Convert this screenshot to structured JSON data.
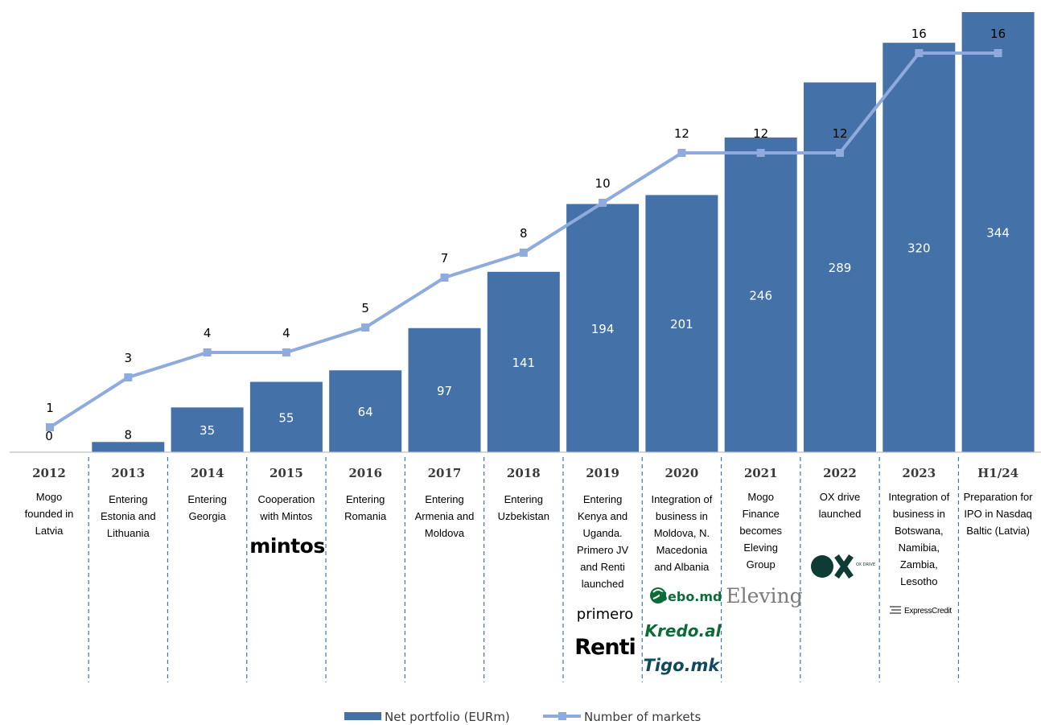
{
  "chart_data": {
    "type": "bar",
    "categories": [
      "2012",
      "2013",
      "2014",
      "2015",
      "2016",
      "2017",
      "2018",
      "2019",
      "2020",
      "2021",
      "2022",
      "2023",
      "H1/24"
    ],
    "series": [
      {
        "name": "Net portfolio (EURm)",
        "type": "bar",
        "values": [
          0,
          8,
          35,
          55,
          64,
          97,
          141,
          194,
          201,
          246,
          289,
          320,
          344
        ]
      },
      {
        "name": "Number of markets",
        "type": "line",
        "values": [
          1,
          3,
          4,
          4,
          5,
          7,
          8,
          10,
          12,
          12,
          12,
          16,
          16
        ]
      }
    ],
    "descriptions": [
      [
        "Mogo",
        "founded in",
        "Latvia"
      ],
      [
        "Entering",
        "Estonia and",
        "Lithuania"
      ],
      [
        "Entering",
        "Georgia"
      ],
      [
        "Cooperation",
        "with Mintos"
      ],
      [
        "Entering",
        "Romania"
      ],
      [
        "Entering",
        "Armenia and",
        "Moldova"
      ],
      [
        "Entering",
        "Uzbekistan"
      ],
      [
        "Entering",
        "Kenya and",
        "Uganda.",
        "Primero JV",
        "and Renti",
        "launched"
      ],
      [
        "Integration of",
        "business in",
        "Moldova, N.",
        "Macedonia",
        "and Albania"
      ],
      [
        "Mogo",
        "Finance",
        "becomes",
        "Eleving",
        "Group"
      ],
      [
        "OX drive",
        "launched"
      ],
      [
        "Integration of",
        "business in",
        "Botswana,",
        "Namibia,",
        "Zambia,",
        "Lesotho"
      ],
      [
        "Preparation for",
        "IPO in Nasdaq",
        "Baltic (Latvia)"
      ]
    ],
    "logos": {
      "mintos": "mintos",
      "primero": "primero",
      "renti": "Renti",
      "sebo": "Sebo.md",
      "kredo": "Kredo.al",
      "tigo": "Tigo.mk",
      "eleving": "Eleving",
      "ox": "OX",
      "ox_small": "OX DRIVE",
      "expresscredit": "ExpressCredit"
    },
    "legend": {
      "position": "bottom",
      "bar": "Net portfolio (EURm)",
      "line": "Number of markets"
    },
    "colors": {
      "bar": "#4472a8",
      "line": "#8faadc"
    },
    "ylim_bar": [
      0,
      344
    ],
    "ylim_line": [
      0,
      16
    ]
  }
}
